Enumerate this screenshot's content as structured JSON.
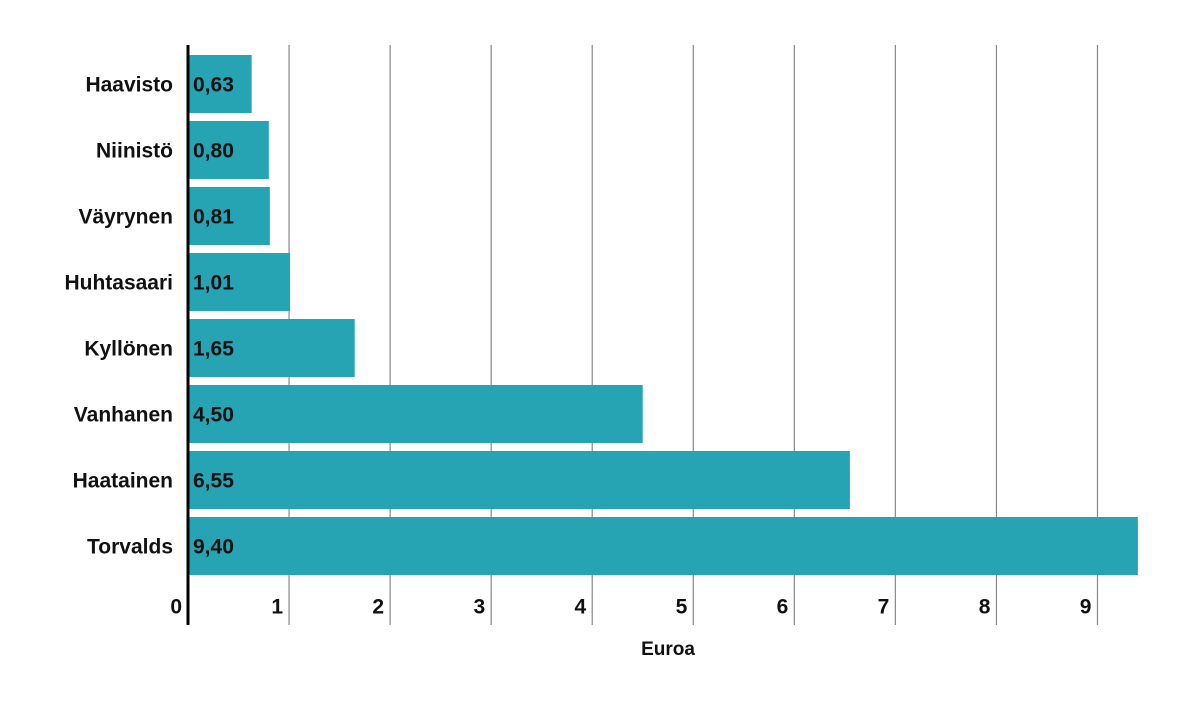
{
  "chart_data": {
    "type": "bar",
    "orientation": "horizontal",
    "categories": [
      "Haavisto",
      "Niinistö",
      "Väyrynen",
      "Huhtasaari",
      "Kyllönen",
      "Vanhanen",
      "Haatainen",
      "Torvalds"
    ],
    "values": [
      0.63,
      0.8,
      0.81,
      1.01,
      1.65,
      4.5,
      6.55,
      9.4
    ],
    "value_labels": [
      "0,63",
      "0,80",
      "0,81",
      "1,01",
      "1,65",
      "4,50",
      "6,55",
      "9,40"
    ],
    "color": "#27a4b3",
    "xlabel": "Euroa",
    "xlim": [
      0,
      9.5
    ],
    "xticks": [
      0,
      1,
      2,
      3,
      4,
      5,
      6,
      7,
      8,
      9
    ],
    "grid": true
  }
}
